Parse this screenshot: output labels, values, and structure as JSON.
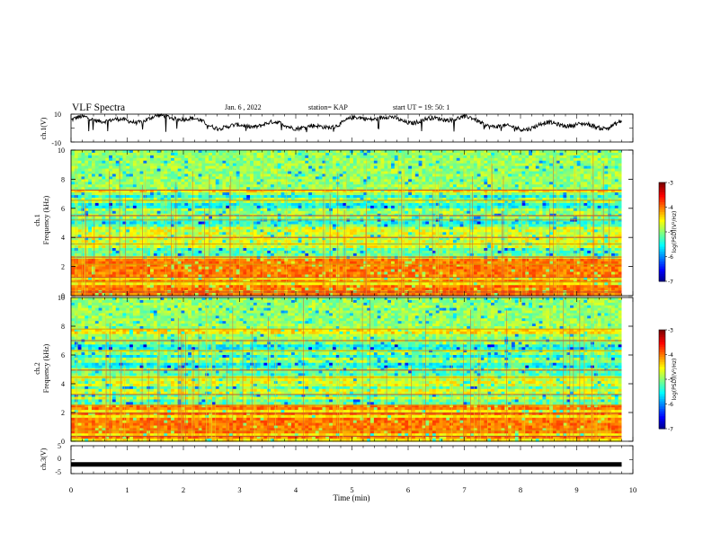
{
  "header": {
    "title": "VLF Spectra",
    "date": "Jan. 6 , 2022",
    "station": "station= KAP",
    "start": "start UT =  19: 50: 1"
  },
  "chart_data": [
    {
      "type": "line",
      "panel": "ch1-voltage",
      "ylabel": "ch.1(V)",
      "ylim": [
        -10,
        10
      ],
      "yticks": [
        "10",
        "-10"
      ],
      "xlim": [
        0,
        10
      ],
      "trace_end_min": 9.8,
      "trace_range_v": [
        -3,
        10
      ],
      "color": "#000000"
    },
    {
      "type": "heatmap",
      "panel": "ch1-spectrogram",
      "ylabel": "ch.1\nFrequency (kHz)",
      "ylabel_line1": "ch.1",
      "ylabel_line2": "Frequency (kHz)",
      "ylim": [
        0,
        10
      ],
      "yticks": [
        "0",
        "2",
        "4",
        "6",
        "8",
        "10"
      ],
      "xlim": [
        0,
        10
      ],
      "data_end_min": 9.8,
      "color_range": [
        -7,
        -3
      ],
      "colorbar_label": "log(PSD)(V²/Hz)",
      "colorbar_ticks": [
        "-3",
        "-4",
        "-5",
        "-6",
        "-7"
      ],
      "bands_khz": [
        0.2,
        0.6,
        1.0,
        1.4,
        1.8,
        2.2,
        2.6,
        3.4,
        3.8,
        4.2,
        4.6,
        5.4,
        5.8,
        6.6,
        7.2
      ],
      "strong_lines_khz": [
        0.25,
        0.95,
        1.25,
        2.15,
        2.65,
        3.55,
        4.0,
        5.2,
        5.5,
        6.55,
        7.25
      ]
    },
    {
      "type": "heatmap",
      "panel": "ch2-spectrogram",
      "ylabel": "ch.2\nFrequency (kHz)",
      "ylabel_line1": "ch.2",
      "ylabel_line2": "Frequency (kHz)",
      "ylim": [
        0,
        10
      ],
      "yticks": [
        "0",
        "2",
        "4",
        "6",
        "8",
        "10"
      ],
      "xlim": [
        0,
        10
      ],
      "data_end_min": 9.8,
      "color_range": [
        -7,
        -3
      ],
      "colorbar_label": "log(PSD)(V²/Hz)",
      "colorbar_ticks": [
        "-3",
        "-4",
        "-5",
        "-6",
        "-7"
      ],
      "bands_khz": [
        0.3,
        0.7,
        1.1,
        1.5,
        1.9,
        2.4,
        3.0,
        3.4,
        4.0,
        4.4,
        5.0,
        5.6,
        6.2,
        6.8,
        7.6
      ],
      "strong_lines_khz": [
        0.35,
        0.75,
        1.95,
        2.5,
        3.25,
        4.45,
        4.95,
        6.3,
        7.0,
        7.8
      ]
    },
    {
      "type": "line",
      "panel": "ch3-voltage",
      "ylabel": "ch.3(V)",
      "ylim": [
        -5,
        5
      ],
      "yticks": [
        "5",
        "0",
        "-5"
      ],
      "xlim": [
        0,
        10
      ],
      "trace_value_v": -1.7,
      "trace_end_min": 9.8,
      "color": "#000000"
    }
  ],
  "x_axis": {
    "label": "Time (min)",
    "ticks": [
      "0",
      "1",
      "2",
      "3",
      "4",
      "5",
      "6",
      "7",
      "8",
      "9",
      "10"
    ]
  }
}
